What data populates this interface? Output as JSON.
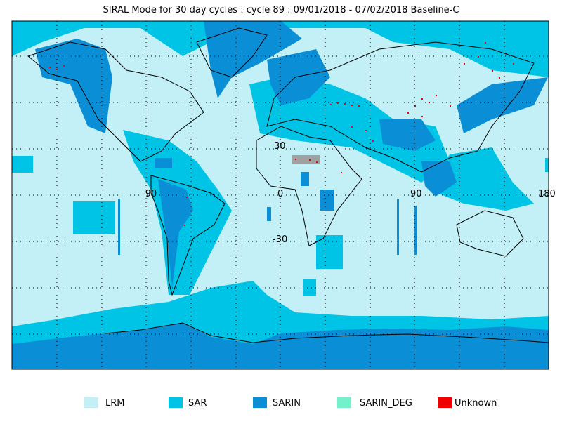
{
  "title": "SIRAL Mode for 30 day cycles : cycle 89 : 09/01/2018 - 07/02/2018 Baseline-C",
  "map": {
    "lat_labels": [
      "30",
      "-30"
    ],
    "lon_labels": [
      "-90",
      "0",
      "90",
      "180"
    ]
  },
  "legend": [
    {
      "label": "LRM",
      "color": "#c2f0f6"
    },
    {
      "label": "SAR",
      "color": "#00c4e6"
    },
    {
      "label": "SARIN",
      "color": "#0a8ed6"
    },
    {
      "label": "SARIN_DEG",
      "color": "#74f0cc"
    },
    {
      "label": "Unknown",
      "color": "#f00000"
    }
  ]
}
